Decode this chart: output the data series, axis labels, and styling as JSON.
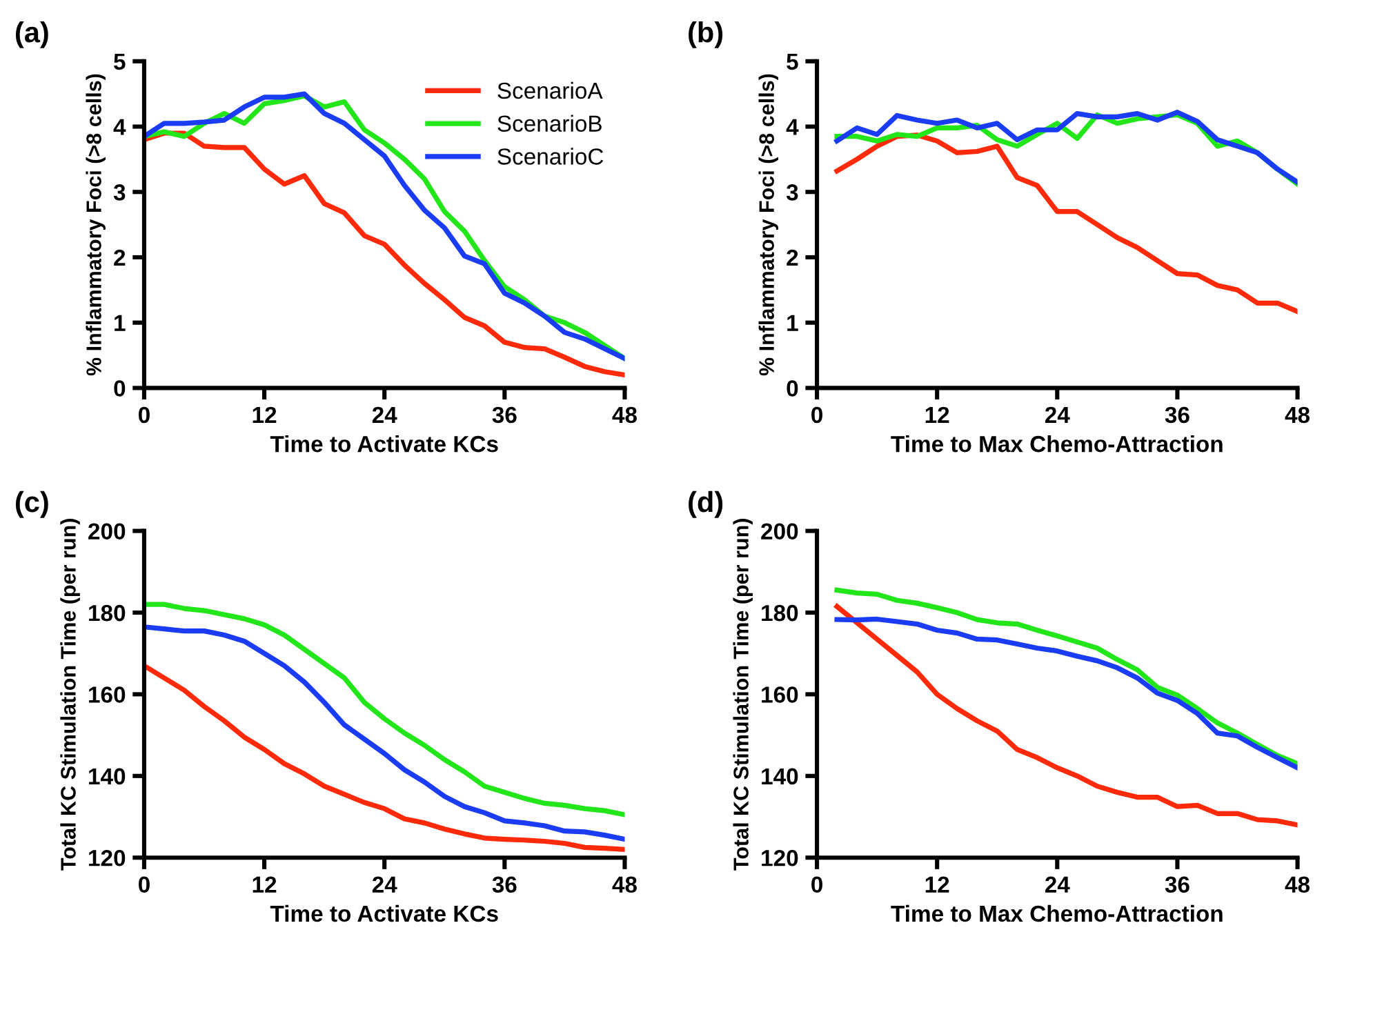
{
  "chart_data": [
    {
      "type": "line",
      "title": "(a)",
      "xlabel": "Time to Activate KCs",
      "ylabel": "% Inflammatory Foci (>8 cells)",
      "x": [
        0,
        2,
        4,
        6,
        8,
        10,
        12,
        14,
        16,
        18,
        20,
        22,
        24,
        26,
        28,
        30,
        32,
        34,
        36,
        38,
        40,
        42,
        44,
        46,
        48
      ],
      "xlim": [
        0,
        48
      ],
      "xticks": [
        0,
        12,
        24,
        36,
        48
      ],
      "ylim": [
        0,
        5
      ],
      "yticks": [
        0,
        1,
        2,
        3,
        4,
        5
      ],
      "legend": "top right",
      "grid": false,
      "series": [
        {
          "name": "ScenarioA",
          "color": "#ff2a0a",
          "values": [
            3.8,
            3.9,
            3.9,
            3.7,
            3.68,
            3.68,
            3.35,
            3.12,
            3.25,
            2.82,
            2.68,
            2.33,
            2.2,
            1.88,
            1.6,
            1.35,
            1.08,
            0.95,
            0.7,
            0.62,
            0.6,
            0.47,
            0.33,
            0.25,
            0.2
          ]
        },
        {
          "name": "ScenarioB",
          "color": "#22e61a",
          "values": [
            3.85,
            3.92,
            3.85,
            4.05,
            4.2,
            4.05,
            4.35,
            4.4,
            4.47,
            4.3,
            4.38,
            3.95,
            3.75,
            3.5,
            3.2,
            2.7,
            2.4,
            1.95,
            1.55,
            1.35,
            1.1,
            1.0,
            0.85,
            0.65,
            0.45
          ]
        },
        {
          "name": "ScenarioC",
          "color": "#1a3cf5",
          "values": [
            3.85,
            4.05,
            4.05,
            4.07,
            4.1,
            4.3,
            4.45,
            4.45,
            4.5,
            4.2,
            4.05,
            3.8,
            3.55,
            3.1,
            2.72,
            2.45,
            2.02,
            1.9,
            1.45,
            1.3,
            1.1,
            0.85,
            0.75,
            0.6,
            0.45
          ]
        }
      ]
    },
    {
      "type": "line",
      "title": "(b)",
      "xlabel": "Time to Max Chemo-Attraction",
      "ylabel": "% Inflammatory Foci (>8 cells)",
      "x": [
        2,
        4,
        6,
        8,
        10,
        12,
        14,
        16,
        18,
        20,
        22,
        24,
        26,
        28,
        30,
        32,
        34,
        36,
        38,
        40,
        42,
        44,
        46,
        48
      ],
      "xlim": [
        0,
        48
      ],
      "xticks": [
        0,
        12,
        24,
        36,
        48
      ],
      "ylim": [
        0,
        5
      ],
      "yticks": [
        0,
        1,
        2,
        3,
        4,
        5
      ],
      "grid": false,
      "series": [
        {
          "color": "#ff2a0a",
          "values": [
            3.32,
            3.5,
            3.7,
            3.85,
            3.87,
            3.78,
            3.6,
            3.62,
            3.7,
            3.22,
            3.1,
            2.7,
            2.7,
            2.5,
            2.3,
            2.15,
            1.95,
            1.75,
            1.73,
            1.57,
            1.5,
            1.3,
            1.3,
            1.17
          ]
        },
        {
          "color": "#22e61a",
          "values": [
            3.85,
            3.85,
            3.78,
            3.88,
            3.85,
            3.98,
            3.98,
            4.02,
            3.8,
            3.7,
            3.88,
            4.05,
            3.82,
            4.18,
            4.05,
            4.12,
            4.15,
            4.18,
            4.05,
            3.7,
            3.78,
            3.6,
            3.35,
            3.12
          ]
        },
        {
          "color": "#1a3cf5",
          "values": [
            3.78,
            3.98,
            3.88,
            4.17,
            4.1,
            4.05,
            4.1,
            3.98,
            4.05,
            3.8,
            3.95,
            3.95,
            4.2,
            4.15,
            4.15,
            4.2,
            4.1,
            4.22,
            4.08,
            3.8,
            3.7,
            3.6,
            3.35,
            3.15
          ]
        }
      ]
    },
    {
      "type": "line",
      "title": "(c)",
      "xlabel": "Time to Activate KCs",
      "ylabel": "Total KC Stimulation Time (per run)",
      "x": [
        0,
        2,
        4,
        6,
        8,
        10,
        12,
        14,
        16,
        18,
        20,
        22,
        24,
        26,
        28,
        30,
        32,
        34,
        36,
        38,
        40,
        42,
        44,
        46,
        48
      ],
      "xlim": [
        0,
        48
      ],
      "xticks": [
        0,
        12,
        24,
        36,
        48
      ],
      "ylim": [
        120,
        200
      ],
      "yticks": [
        120,
        140,
        160,
        180,
        200
      ],
      "grid": false,
      "series": [
        {
          "color": "#ff2a0a",
          "values": [
            167,
            164,
            161,
            157,
            153.5,
            149.5,
            146.5,
            143,
            140.5,
            137.5,
            135.5,
            133.5,
            132,
            129.5,
            128.5,
            127,
            125.8,
            124.8,
            124.5,
            124.3,
            124,
            123.5,
            122.5,
            122.3,
            122
          ]
        },
        {
          "color": "#22e61a",
          "values": [
            182,
            182,
            181,
            180.5,
            179.5,
            178.5,
            177,
            174.5,
            171,
            167.5,
            164,
            158,
            154,
            150.5,
            147.5,
            144,
            141,
            137.5,
            136,
            134.5,
            133.3,
            132.8,
            132,
            131.5,
            130.5
          ]
        },
        {
          "color": "#1a3cf5",
          "values": [
            176.5,
            176,
            175.5,
            175.5,
            174.5,
            173,
            170,
            167,
            163,
            158,
            152.5,
            149,
            145.5,
            141.5,
            138.5,
            135,
            132.5,
            131,
            129,
            128.5,
            127.8,
            126.5,
            126.3,
            125.5,
            124.5
          ]
        }
      ]
    },
    {
      "type": "line",
      "title": "(d)",
      "xlabel": "Time to Max Chemo-Attraction",
      "ylabel": "Total KC Stimulation Time (per run)",
      "x": [
        2,
        4,
        6,
        8,
        10,
        12,
        14,
        16,
        18,
        20,
        22,
        24,
        26,
        28,
        30,
        32,
        34,
        36,
        38,
        40,
        42,
        44,
        46,
        48
      ],
      "xlim": [
        0,
        48
      ],
      "xticks": [
        0,
        12,
        24,
        36,
        48
      ],
      "ylim": [
        120,
        200
      ],
      "yticks": [
        120,
        140,
        160,
        180,
        200
      ],
      "grid": false,
      "series": [
        {
          "color": "#ff2a0a",
          "values": [
            181.5,
            177.5,
            173.5,
            169.5,
            165.5,
            160,
            156.5,
            153.5,
            151,
            146.5,
            144.5,
            142,
            140,
            137.5,
            136,
            134.8,
            134.8,
            132.5,
            132.8,
            130.8,
            130.8,
            129.3,
            129,
            128
          ]
        },
        {
          "color": "#22e61a",
          "values": [
            185.5,
            184.8,
            184.5,
            183,
            182.3,
            181.2,
            180,
            178.3,
            177.5,
            177.2,
            175.7,
            174.3,
            172.8,
            171.3,
            168.5,
            166,
            161.7,
            159.8,
            156.5,
            153,
            150.5,
            147.7,
            145,
            143
          ]
        },
        {
          "color": "#1a3cf5",
          "values": [
            178.3,
            178.2,
            178.4,
            177.8,
            177.2,
            175.7,
            175,
            173.5,
            173.3,
            172.3,
            171.3,
            170.6,
            169.3,
            168.2,
            166.5,
            164,
            160.3,
            158.5,
            155.3,
            150.5,
            149.8,
            147,
            144.5,
            142
          ]
        }
      ]
    }
  ]
}
